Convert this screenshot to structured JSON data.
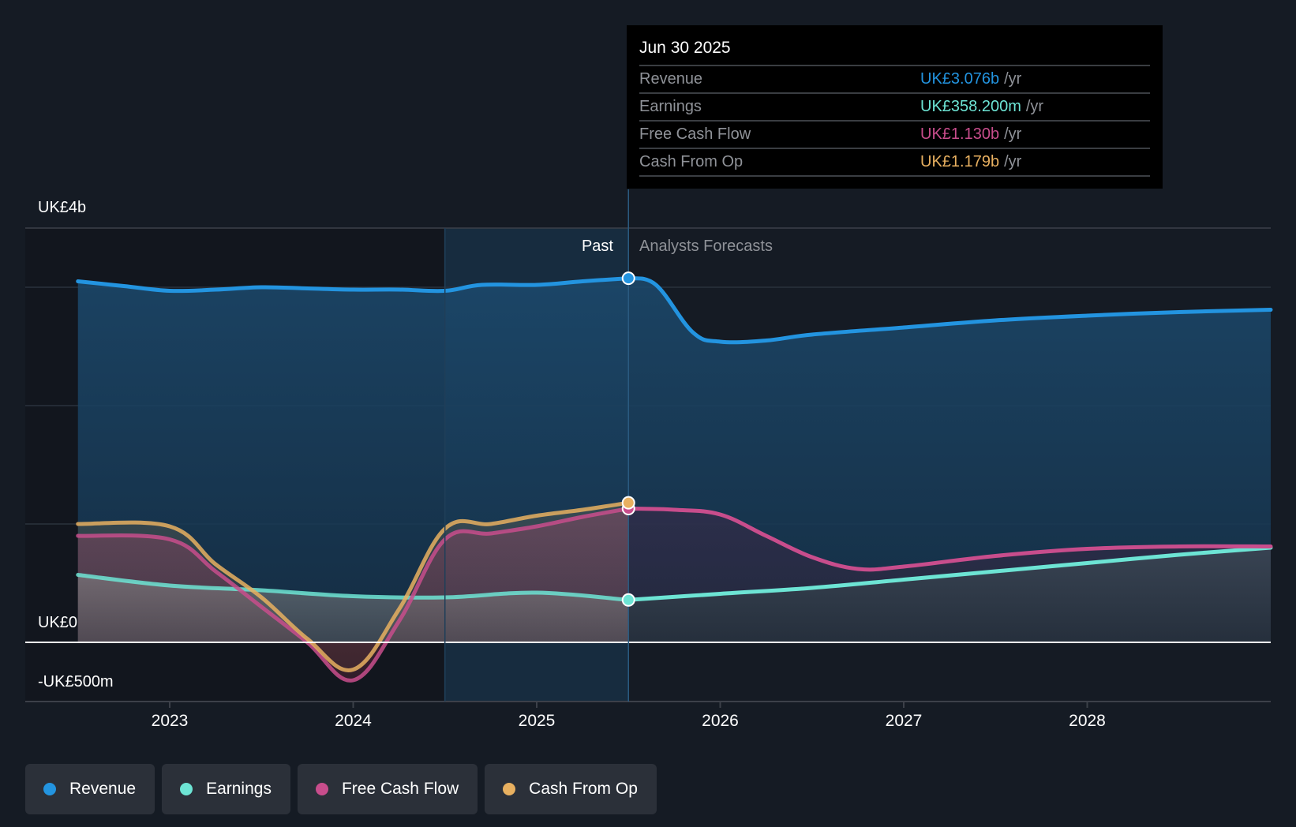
{
  "tooltip": {
    "date": "Jun 30 2025",
    "rows": [
      {
        "label": "Revenue",
        "value": "UK£3.076b",
        "unit": "/yr",
        "color": "#2394e0"
      },
      {
        "label": "Earnings",
        "value": "UK£358.200m",
        "unit": "/yr",
        "color": "#6de4d4"
      },
      {
        "label": "Free Cash Flow",
        "value": "UK£1.130b",
        "unit": "/yr",
        "color": "#c84d8c"
      },
      {
        "label": "Cash From Op",
        "value": "UK£1.179b",
        "unit": "/yr",
        "color": "#e8b060"
      }
    ]
  },
  "regions": {
    "past": "Past",
    "forecast": "Analysts Forecasts"
  },
  "legend": [
    {
      "label": "Revenue",
      "color": "#2394e0"
    },
    {
      "label": "Earnings",
      "color": "#6de4d4"
    },
    {
      "label": "Free Cash Flow",
      "color": "#c84d8c"
    },
    {
      "label": "Cash From Op",
      "color": "#e8b060"
    }
  ],
  "chart_data": {
    "type": "line",
    "title": "",
    "xlabel": "",
    "ylabel": "",
    "y_unit": "UK£ billions",
    "ylim": [
      -0.5,
      3.5
    ],
    "xlim": [
      2022.5,
      2029.0
    ],
    "y_tick_labels": [
      {
        "value": 3.5,
        "label": "UK£4b"
      },
      {
        "value": 0,
        "label": "UK£0"
      },
      {
        "value": -0.5,
        "label": "-UK£500m"
      }
    ],
    "gridlines": [
      1,
      2,
      3
    ],
    "x_ticks": [
      {
        "value": 2023,
        "label": "2023"
      },
      {
        "value": 2024,
        "label": "2024"
      },
      {
        "value": 2025,
        "label": "2025"
      },
      {
        "value": 2026,
        "label": "2026"
      },
      {
        "value": 2027,
        "label": "2027"
      },
      {
        "value": 2028,
        "label": "2028"
      }
    ],
    "past_end": 2025.5,
    "highlight_start": 2024.5,
    "grid": true,
    "legend_position": "bottom-left",
    "series": [
      {
        "name": "Revenue",
        "color": "#2394e0",
        "points": [
          [
            2022.5,
            3.05
          ],
          [
            2022.75,
            3.01
          ],
          [
            2023.0,
            2.97
          ],
          [
            2023.25,
            2.98
          ],
          [
            2023.5,
            3.0
          ],
          [
            2023.75,
            2.99
          ],
          [
            2024.0,
            2.98
          ],
          [
            2024.25,
            2.98
          ],
          [
            2024.5,
            2.97
          ],
          [
            2024.7,
            3.02
          ],
          [
            2025.0,
            3.02
          ],
          [
            2025.25,
            3.05
          ],
          [
            2025.5,
            3.076
          ],
          [
            2025.65,
            3.02
          ],
          [
            2025.85,
            2.62
          ],
          [
            2026.0,
            2.54
          ],
          [
            2026.25,
            2.55
          ],
          [
            2026.5,
            2.6
          ],
          [
            2027.0,
            2.66
          ],
          [
            2027.5,
            2.72
          ],
          [
            2028.0,
            2.76
          ],
          [
            2028.5,
            2.79
          ],
          [
            2029.0,
            2.81
          ]
        ]
      },
      {
        "name": "Earnings",
        "color": "#6de4d4",
        "points": [
          [
            2022.5,
            0.57
          ],
          [
            2023.0,
            0.48
          ],
          [
            2023.5,
            0.44
          ],
          [
            2024.0,
            0.39
          ],
          [
            2024.5,
            0.38
          ],
          [
            2025.0,
            0.42
          ],
          [
            2025.5,
            0.358
          ],
          [
            2026.0,
            0.41
          ],
          [
            2026.5,
            0.46
          ],
          [
            2027.0,
            0.53
          ],
          [
            2027.5,
            0.6
          ],
          [
            2028.0,
            0.67
          ],
          [
            2028.5,
            0.74
          ],
          [
            2029.0,
            0.8
          ]
        ]
      },
      {
        "name": "Free Cash Flow",
        "color": "#c84d8c",
        "points": [
          [
            2022.5,
            0.9
          ],
          [
            2023.0,
            0.87
          ],
          [
            2023.25,
            0.6
          ],
          [
            2023.5,
            0.3
          ],
          [
            2023.75,
            0.0
          ],
          [
            2024.0,
            -0.32
          ],
          [
            2024.25,
            0.18
          ],
          [
            2024.5,
            0.87
          ],
          [
            2024.75,
            0.92
          ],
          [
            2025.0,
            0.98
          ],
          [
            2025.25,
            1.06
          ],
          [
            2025.5,
            1.13
          ],
          [
            2025.75,
            1.12
          ],
          [
            2026.0,
            1.08
          ],
          [
            2026.25,
            0.9
          ],
          [
            2026.5,
            0.72
          ],
          [
            2026.75,
            0.62
          ],
          [
            2027.0,
            0.64
          ],
          [
            2027.5,
            0.73
          ],
          [
            2028.0,
            0.79
          ],
          [
            2028.5,
            0.81
          ],
          [
            2029.0,
            0.81
          ]
        ]
      },
      {
        "name": "Cash From Op",
        "color": "#e8b060",
        "points": [
          [
            2022.5,
            1.0
          ],
          [
            2023.0,
            0.98
          ],
          [
            2023.25,
            0.66
          ],
          [
            2023.5,
            0.38
          ],
          [
            2023.75,
            0.03
          ],
          [
            2024.0,
            -0.23
          ],
          [
            2024.25,
            0.28
          ],
          [
            2024.5,
            0.96
          ],
          [
            2024.75,
            1.0
          ],
          [
            2025.0,
            1.07
          ],
          [
            2025.25,
            1.12
          ],
          [
            2025.5,
            1.179
          ]
        ]
      }
    ]
  }
}
